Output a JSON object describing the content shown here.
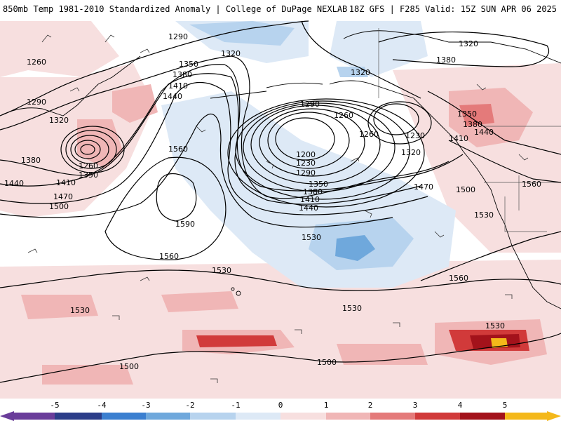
{
  "header": {
    "left_title": "850mb Temp 1981-2010 Standardized Anomaly | College of DuPage NEXLAB",
    "right_title": "18Z GFS | F285 Valid: 15Z SUN APR 06 2025"
  },
  "colors": {
    "anom_neg5": "#6a3d9a",
    "anom_neg4": "#2b3d88",
    "anom_neg3": "#3b7fd0",
    "anom_neg2": "#6fa8dc",
    "anom_neg1": "#b7d3ee",
    "anom_neg05": "#dde9f6",
    "anom_pos05": "#f7dfdf",
    "anom_pos1": "#f0b6b6",
    "anom_pos2": "#e47a7a",
    "anom_pos3": "#d13a3a",
    "anom_pos4": "#a3121b",
    "anom_pos5": "#f4b81a",
    "contour": "#000000",
    "coast": "#000000",
    "border": "#555555"
  },
  "colorbar": {
    "labels": [
      "-5",
      "-4",
      "-3",
      "-2",
      "-1",
      "0",
      "1",
      "2",
      "3",
      "4",
      "5"
    ]
  },
  "height_labels": [
    "1290",
    "1320",
    "1260",
    "1350",
    "1380",
    "1410",
    "1440",
    "1290",
    "1320",
    "1380",
    "1260",
    "1350",
    "1410",
    "1440",
    "1470",
    "1500",
    "1560",
    "1590",
    "1560",
    "1530",
    "1530",
    "1530",
    "1500",
    "1290",
    "1260",
    "1200",
    "1230",
    "1290",
    "1350",
    "1380",
    "1410",
    "1440",
    "1260",
    "1230",
    "1320",
    "1470",
    "1350",
    "1380",
    "1440",
    "1410",
    "1500",
    "1560",
    "1530",
    "1560",
    "1530",
    "1530",
    "1320",
    "1380",
    "1320",
    "1500"
  ]
}
